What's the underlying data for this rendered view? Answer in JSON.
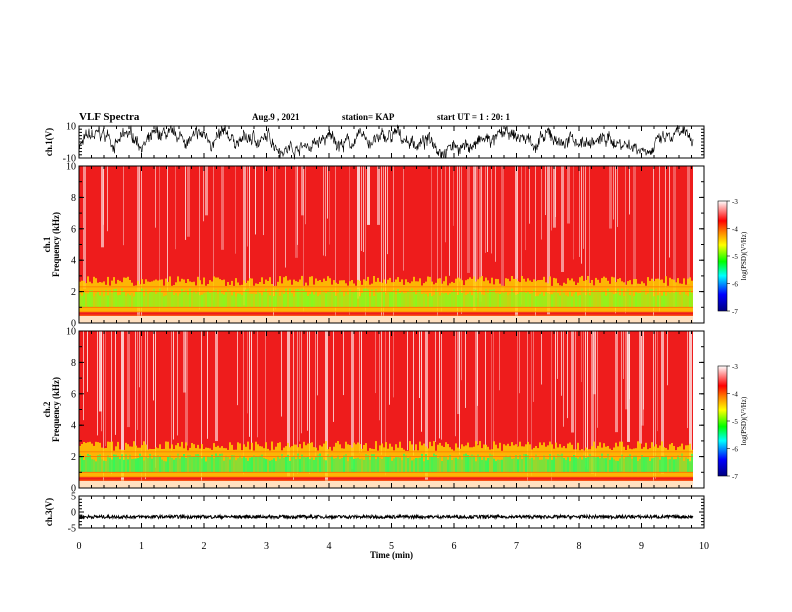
{
  "header": {
    "title": "VLF Spectra",
    "date": "Aug.9 , 2021",
    "station": "station= KAP",
    "start": "start UT = 1 : 20: 1"
  },
  "colors": {
    "background_spec": "#ee1c1c",
    "waveform": "#000000",
    "colormap": [
      "#0000a0",
      "#0000ff",
      "#00ffff",
      "#00ff00",
      "#ffff00",
      "#ff8000",
      "#ff0000",
      "#ffffff"
    ]
  },
  "chart_data": [
    {
      "type": "line",
      "panel": "ch1-waveform",
      "ylabel": "ch.1(V)",
      "ylim": [
        -10,
        10
      ],
      "yticks": [
        "10",
        "-10"
      ]
    },
    {
      "type": "heatmap",
      "panel": "ch1-spectrogram",
      "ylabel": "ch.1 Frequency (kHz)",
      "ylim": [
        0,
        10
      ],
      "yticks": [
        "0",
        "2",
        "4",
        "6",
        "8",
        "10"
      ],
      "colorbar": {
        "label": "log(PSD)(V²/Hz)",
        "range": [
          -7,
          -3
        ],
        "ticks": [
          "-3",
          "-4",
          "-5",
          "-6",
          "-7"
        ]
      }
    },
    {
      "type": "heatmap",
      "panel": "ch2-spectrogram",
      "ylabel": "ch.2 Frequency (kHz)",
      "ylim": [
        0,
        10
      ],
      "yticks": [
        "0",
        "2",
        "4",
        "6",
        "8",
        "10"
      ],
      "colorbar": {
        "label": "log(PSD)(V²/Hz)",
        "range": [
          -7,
          -3
        ],
        "ticks": [
          "-3",
          "-4",
          "-5",
          "-6",
          "-7"
        ]
      }
    },
    {
      "type": "line",
      "panel": "ch3-waveform",
      "ylabel": "ch.3(V)",
      "ylim": [
        -5,
        5
      ],
      "yticks": [
        "5",
        "0",
        "-5"
      ]
    }
  ],
  "xaxis": {
    "label": "Time (min)",
    "range": [
      0,
      10
    ],
    "ticks": [
      "0",
      "1",
      "2",
      "3",
      "4",
      "5",
      "6",
      "7",
      "8",
      "9",
      "10"
    ]
  }
}
